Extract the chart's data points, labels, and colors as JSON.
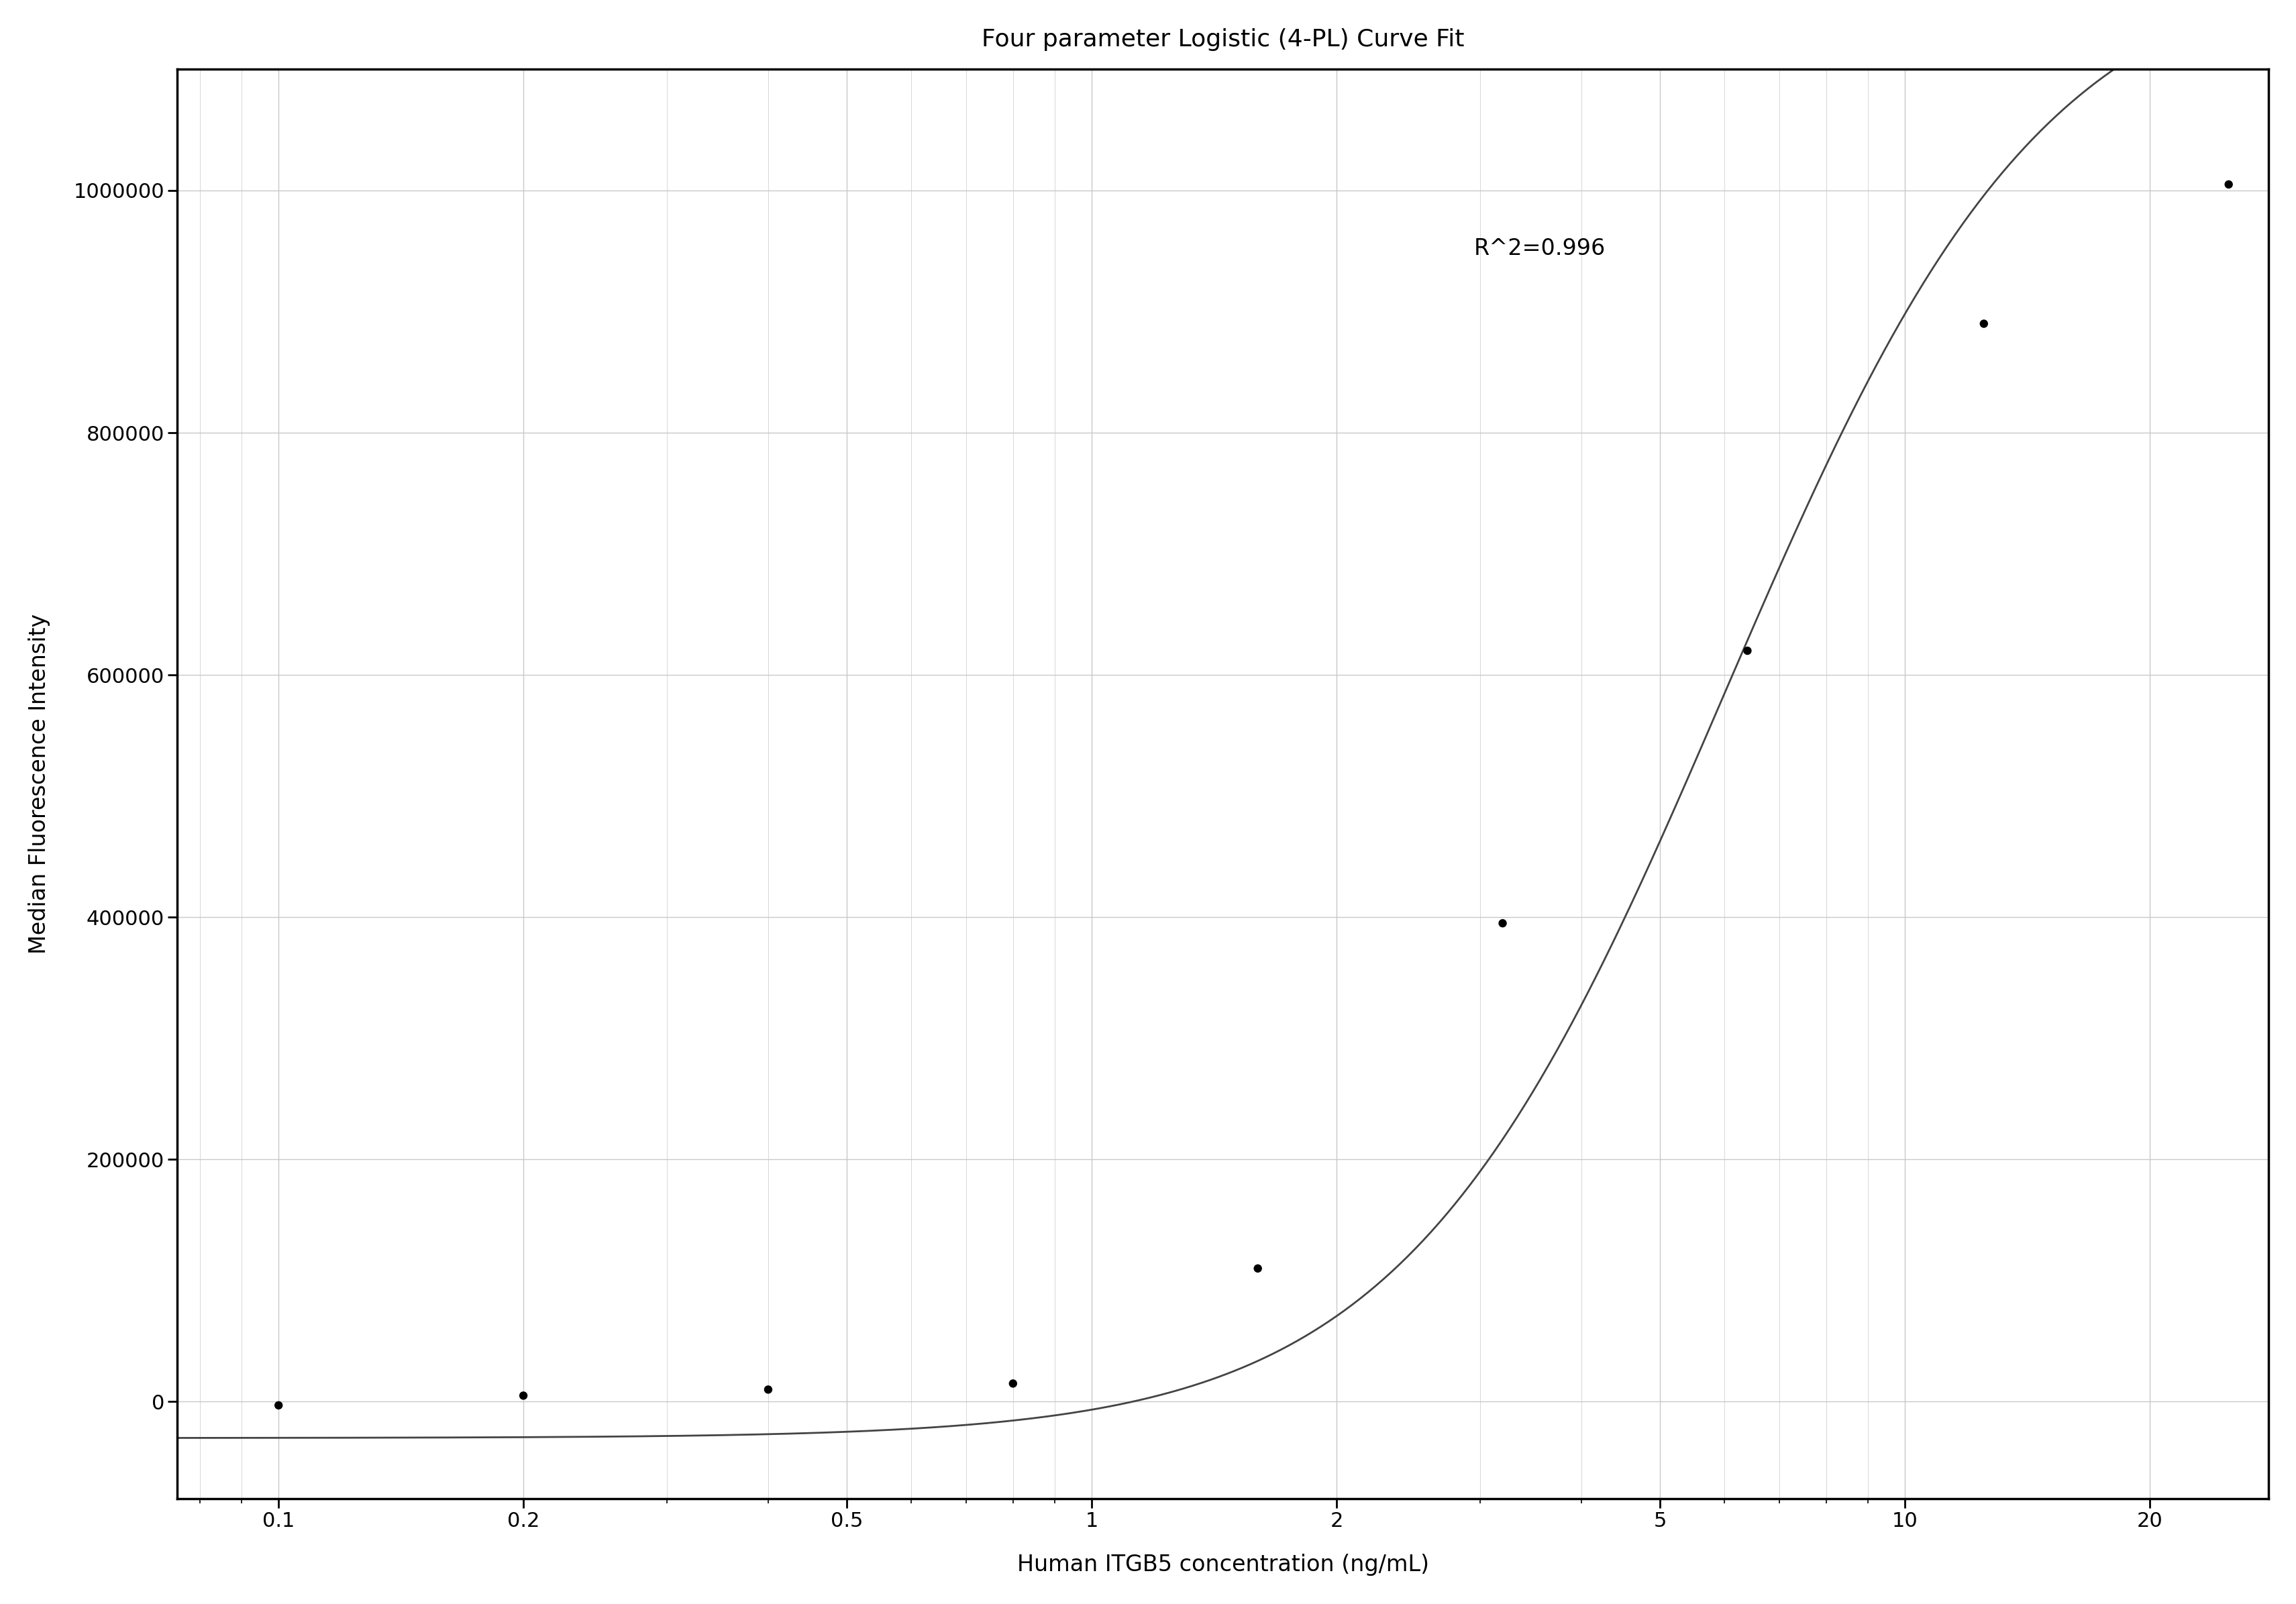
{
  "title": "Four parameter Logistic (4-PL) Curve Fit",
  "xlabel": "Human ITGB5 concentration (ng/mL)",
  "ylabel": "Median Fluorescence Intensity",
  "r_squared": "R^2=0.996",
  "data_x": [
    0.1,
    0.2,
    0.4,
    0.8,
    1.6,
    3.2,
    6.4,
    12.5,
    25.0
  ],
  "data_y": [
    -3000,
    5000,
    10000,
    15000,
    110000,
    395000,
    620000,
    890000,
    1005000
  ],
  "4pl_A": -30000,
  "4pl_B": 2.2,
  "4pl_C": 6.0,
  "4pl_D": 1200000,
  "ylim": [
    -80000,
    1100000
  ],
  "yticks": [
    0,
    200000,
    400000,
    600000,
    800000,
    1000000
  ],
  "xticks": [
    0.1,
    0.2,
    0.5,
    1,
    2,
    5,
    10,
    20
  ],
  "background_color": "#ffffff",
  "grid_color": "#c8c8c8",
  "curve_color": "#444444",
  "dot_color": "#000000",
  "dot_size": 80,
  "title_fontsize": 26,
  "label_fontsize": 24,
  "tick_fontsize": 22,
  "annotation_fontsize": 24,
  "linewidth": 2.0,
  "spine_linewidth": 2.5
}
